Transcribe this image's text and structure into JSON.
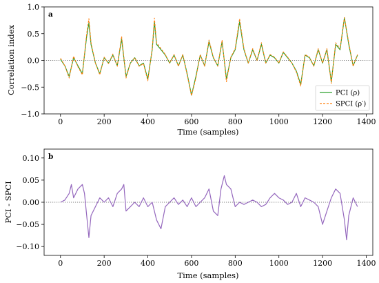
{
  "chart_data": [
    {
      "type": "line",
      "panel": "a",
      "xlabel": "Time (samples)",
      "ylabel": "Correlation index",
      "xlim": [
        -75,
        1430
      ],
      "ylim": [
        -1.0,
        1.0
      ],
      "xticks": [
        0,
        200,
        400,
        600,
        800,
        1000,
        1200,
        1400
      ],
      "xtick_labels": [
        "0",
        "200",
        "400",
        "600",
        "800",
        "1000",
        "1200",
        "1400"
      ],
      "yticks": [
        -1.0,
        -0.5,
        0.0,
        0.5,
        1.0
      ],
      "ytick_labels": [
        "−1.0",
        "−0.5",
        "0.0",
        "0.5",
        "1.0"
      ],
      "reference_line": 0.0,
      "legend_position": "lower-right",
      "series": [
        {
          "name": "PCI (ρ)",
          "color": "#2ca02c",
          "style": "solid",
          "x": [
            0,
            20,
            40,
            60,
            80,
            100,
            120,
            130,
            140,
            160,
            180,
            200,
            220,
            240,
            260,
            280,
            300,
            320,
            340,
            360,
            380,
            400,
            420,
            430,
            440,
            460,
            480,
            500,
            520,
            540,
            560,
            580,
            600,
            620,
            640,
            660,
            680,
            700,
            720,
            740,
            760,
            780,
            800,
            820,
            840,
            860,
            880,
            900,
            920,
            940,
            960,
            980,
            1000,
            1020,
            1040,
            1060,
            1080,
            1100,
            1120,
            1140,
            1160,
            1180,
            1200,
            1220,
            1240,
            1260,
            1280,
            1300,
            1320,
            1340,
            1360
          ],
          "y": [
            0.02,
            -0.1,
            -0.3,
            0.05,
            -0.1,
            -0.25,
            0.45,
            0.7,
            0.3,
            -0.05,
            -0.25,
            0.05,
            -0.05,
            0.1,
            -0.1,
            0.4,
            -0.3,
            -0.05,
            0.05,
            -0.1,
            -0.05,
            -0.35,
            0.2,
            0.72,
            0.3,
            0.2,
            0.1,
            -0.05,
            0.1,
            -0.1,
            0.1,
            -0.25,
            -0.65,
            -0.3,
            0.1,
            -0.1,
            0.35,
            0.05,
            -0.1,
            0.35,
            -0.35,
            0.05,
            0.2,
            0.72,
            0.2,
            -0.05,
            0.2,
            0.0,
            0.3,
            -0.05,
            0.1,
            0.05,
            -0.05,
            0.15,
            0.05,
            -0.05,
            -0.2,
            -0.45,
            0.1,
            0.05,
            -0.1,
            0.2,
            -0.05,
            0.2,
            -0.4,
            0.3,
            0.2,
            0.8,
            0.3,
            -0.1,
            0.1
          ]
        },
        {
          "name": "SPCI (ρ′)",
          "color": "#ff7f0e",
          "style": "dashed",
          "x": [
            0,
            20,
            40,
            60,
            80,
            100,
            120,
            130,
            140,
            160,
            180,
            200,
            220,
            240,
            260,
            280,
            300,
            320,
            340,
            360,
            380,
            400,
            420,
            430,
            440,
            460,
            480,
            500,
            520,
            540,
            560,
            580,
            600,
            620,
            640,
            660,
            680,
            700,
            720,
            740,
            760,
            780,
            800,
            820,
            840,
            860,
            880,
            900,
            920,
            940,
            960,
            980,
            1000,
            1020,
            1040,
            1060,
            1080,
            1100,
            1120,
            1140,
            1160,
            1180,
            1200,
            1220,
            1240,
            1260,
            1280,
            1300,
            1320,
            1340,
            1360
          ],
          "y": [
            0.04,
            -0.1,
            -0.33,
            0.08,
            -0.12,
            -0.27,
            0.5,
            0.78,
            0.33,
            -0.05,
            -0.27,
            0.06,
            -0.06,
            0.12,
            -0.11,
            0.45,
            -0.33,
            -0.05,
            0.05,
            -0.11,
            -0.06,
            -0.38,
            0.22,
            0.79,
            0.33,
            0.22,
            0.11,
            -0.05,
            0.11,
            -0.11,
            0.11,
            -0.27,
            -0.66,
            -0.33,
            0.11,
            -0.11,
            0.38,
            0.06,
            -0.11,
            0.38,
            -0.4,
            0.06,
            0.22,
            0.78,
            0.22,
            -0.05,
            0.22,
            0.0,
            0.33,
            -0.05,
            0.11,
            0.06,
            -0.05,
            0.16,
            0.06,
            -0.05,
            -0.22,
            -0.48,
            0.11,
            0.06,
            -0.11,
            0.22,
            -0.05,
            0.22,
            -0.43,
            0.33,
            0.22,
            0.8,
            0.33,
            -0.11,
            0.11
          ]
        }
      ]
    },
    {
      "type": "line",
      "panel": "b",
      "xlabel": "Time (samples)",
      "ylabel": "PCI - SPCI",
      "xlim": [
        -75,
        1430
      ],
      "ylim": [
        -0.12,
        0.12
      ],
      "xticks": [
        0,
        200,
        400,
        600,
        800,
        1000,
        1200,
        1400
      ],
      "xtick_labels": [
        "0",
        "200",
        "400",
        "600",
        "800",
        "1000",
        "1200",
        "1400"
      ],
      "yticks": [
        -0.1,
        -0.05,
        0.0,
        0.05,
        0.1
      ],
      "ytick_labels": [
        "−0.10",
        "−0.05",
        "0.00",
        "0.05",
        "0.10"
      ],
      "reference_line": 0.0,
      "series": [
        {
          "name": "",
          "color": "#9467bd",
          "style": "solid",
          "x": [
            0,
            20,
            40,
            50,
            60,
            80,
            100,
            110,
            120,
            130,
            140,
            160,
            180,
            200,
            220,
            240,
            260,
            280,
            290,
            300,
            320,
            340,
            360,
            380,
            400,
            420,
            440,
            460,
            480,
            500,
            520,
            540,
            560,
            580,
            600,
            620,
            640,
            660,
            680,
            700,
            720,
            735,
            750,
            760,
            780,
            800,
            820,
            840,
            860,
            880,
            900,
            920,
            940,
            960,
            980,
            1000,
            1020,
            1040,
            1060,
            1080,
            1100,
            1110,
            1120,
            1140,
            1160,
            1180,
            1200,
            1220,
            1240,
            1260,
            1280,
            1300,
            1310,
            1320,
            1340,
            1360
          ],
          "y": [
            0.0,
            0.005,
            0.02,
            0.04,
            0.01,
            0.03,
            0.04,
            0.02,
            -0.03,
            -0.08,
            -0.03,
            -0.01,
            0.01,
            0.0,
            0.01,
            -0.01,
            0.02,
            0.03,
            0.04,
            -0.02,
            -0.01,
            0.0,
            -0.01,
            0.01,
            -0.01,
            0.0,
            -0.04,
            -0.06,
            -0.01,
            0.0,
            0.01,
            -0.005,
            0.005,
            -0.01,
            0.01,
            -0.01,
            0.0,
            0.01,
            0.03,
            -0.02,
            -0.03,
            0.03,
            0.06,
            0.04,
            0.03,
            -0.01,
            0.0,
            -0.005,
            0.0,
            0.005,
            0.0,
            -0.01,
            -0.005,
            0.01,
            0.02,
            0.01,
            0.005,
            -0.005,
            0.0,
            0.02,
            -0.01,
            0.0,
            0.01,
            0.005,
            0.0,
            -0.01,
            -0.05,
            -0.02,
            0.01,
            0.03,
            0.02,
            -0.04,
            -0.085,
            -0.03,
            0.01,
            -0.01
          ]
        }
      ]
    }
  ]
}
